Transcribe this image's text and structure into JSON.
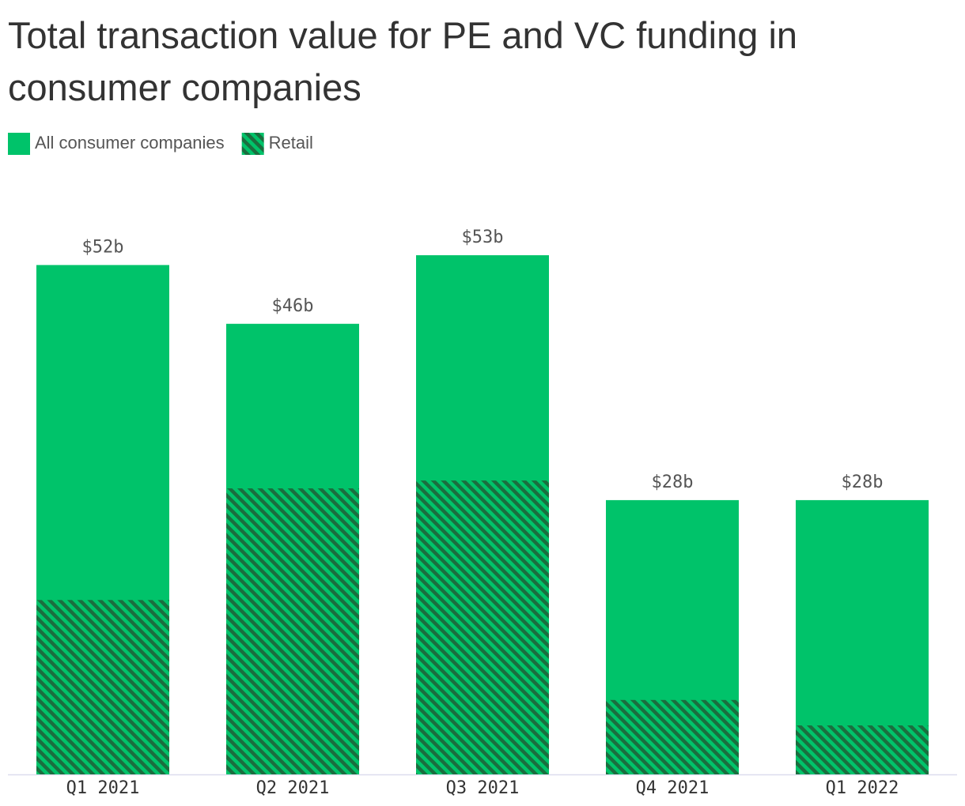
{
  "chart_data": {
    "type": "bar",
    "barmode": "overlay",
    "title": "Total transaction value for PE and VC funding in consumer companies",
    "categories": [
      "Q1 2021",
      "Q2 2021",
      "Q3 2021",
      "Q4 2021",
      "Q1 2022"
    ],
    "series": [
      {
        "name": "All consumer companies",
        "color": "#00c36a",
        "values": [
          52,
          46,
          53,
          28,
          28
        ],
        "value_labels": [
          "$52b",
          "$46b",
          "$53b",
          "$28b",
          "$28b"
        ]
      },
      {
        "name": "Retail",
        "color": "#1b6e3f",
        "pattern": "stripes",
        "values": [
          17.8,
          29.2,
          30.0,
          7.6,
          5.0
        ]
      }
    ]
  }
}
